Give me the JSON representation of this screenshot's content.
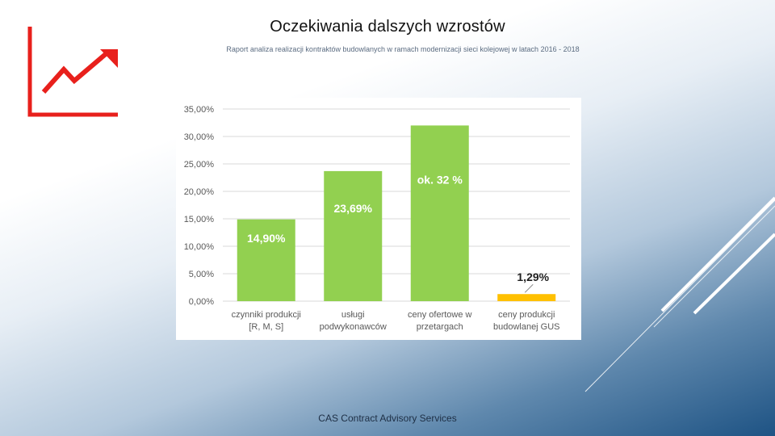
{
  "slide": {
    "title": "Oczekiwania dalszych wzrostów",
    "subtitle": "Raport analiza realizacji kontraktów budowlanych w ramach modernizacji sieci kolejowej w latach 2016 - 2018",
    "footer": "CAS Contract Advisory Services"
  },
  "colors": {
    "logo": "#e8201c",
    "bar_green": "#92d050",
    "bar_yellow": "#ffc000",
    "gridline": "#d9d9d9",
    "axis_text": "#595959",
    "label_text": "#ffffff",
    "label_dark": "#1f1f1f"
  },
  "logo_icon": "chart-arrow-up-icon",
  "chart_data": {
    "type": "bar",
    "categories": [
      [
        "czynniki produkcji",
        "[R, M, S]"
      ],
      [
        "usługi",
        "podwykonawców"
      ],
      [
        "ceny ofertowe w",
        "przetargach"
      ],
      [
        "ceny produkcji",
        "budowlanej GUS"
      ]
    ],
    "values": [
      14.9,
      23.69,
      32.0,
      1.29
    ],
    "data_labels": [
      "14,90%",
      "23,69%",
      "ok. 32 %",
      "1,29%"
    ],
    "ylim": [
      0,
      35
    ],
    "yticks": [
      0,
      5,
      10,
      15,
      20,
      25,
      30,
      35
    ],
    "ytick_labels": [
      "0,00%",
      "5,00%",
      "10,00%",
      "15,00%",
      "20,00%",
      "25,00%",
      "30,00%",
      "35,00%"
    ],
    "grid": true,
    "legend": "none"
  }
}
